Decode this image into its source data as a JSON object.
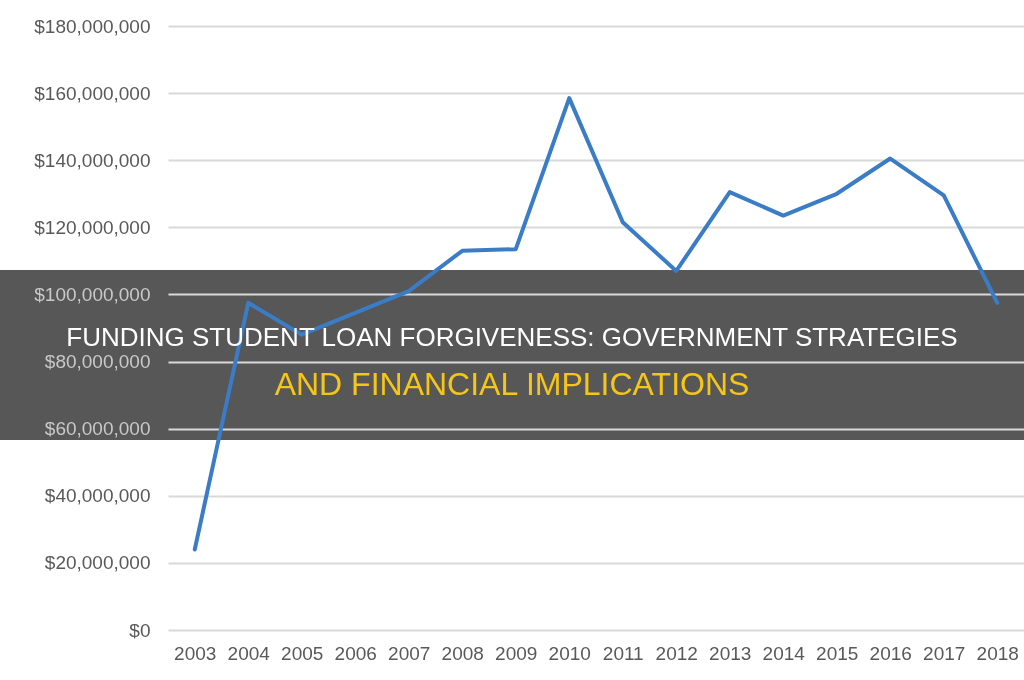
{
  "chart_data": {
    "type": "line",
    "title": "FUNDING STUDENT LOAN FORGIVENESS: GOVERNMENT STRATEGIES",
    "subtitle": "AND FINANCIAL IMPLICATIONS",
    "categories": [
      "2003",
      "2004",
      "2005",
      "2006",
      "2007",
      "2008",
      "2009",
      "2010",
      "2011",
      "2012",
      "2013",
      "2014",
      "2015",
      "2016",
      "2017",
      "2018"
    ],
    "series": [
      {
        "color": "#3b7cc6",
        "values": [
          24000000,
          97500000,
          88000000,
          94500000,
          101000000,
          113000000,
          113500000,
          158500000,
          121500000,
          107000000,
          130500000,
          123500000,
          130000000,
          140500000,
          129500000,
          97500000
        ]
      }
    ],
    "ylim": [
      0,
      180000000
    ],
    "yticks": [
      {
        "value": 0,
        "label": "$0"
      },
      {
        "value": 20000000,
        "label": "$20,000,000"
      },
      {
        "value": 40000000,
        "label": "$40,000,000"
      },
      {
        "value": 60000000,
        "label": "$60,000,000"
      },
      {
        "value": 80000000,
        "label": "$80,000,000"
      },
      {
        "value": 100000000,
        "label": "$100,000,000"
      },
      {
        "value": 120000000,
        "label": "$120,000,000"
      },
      {
        "value": 140000000,
        "label": "$140,000,000"
      },
      {
        "value": 160000000,
        "label": "$160,000,000"
      },
      {
        "value": 180000000,
        "label": "$180,000,000"
      }
    ],
    "grid": "y",
    "marker": "none",
    "line_style": "solid"
  }
}
